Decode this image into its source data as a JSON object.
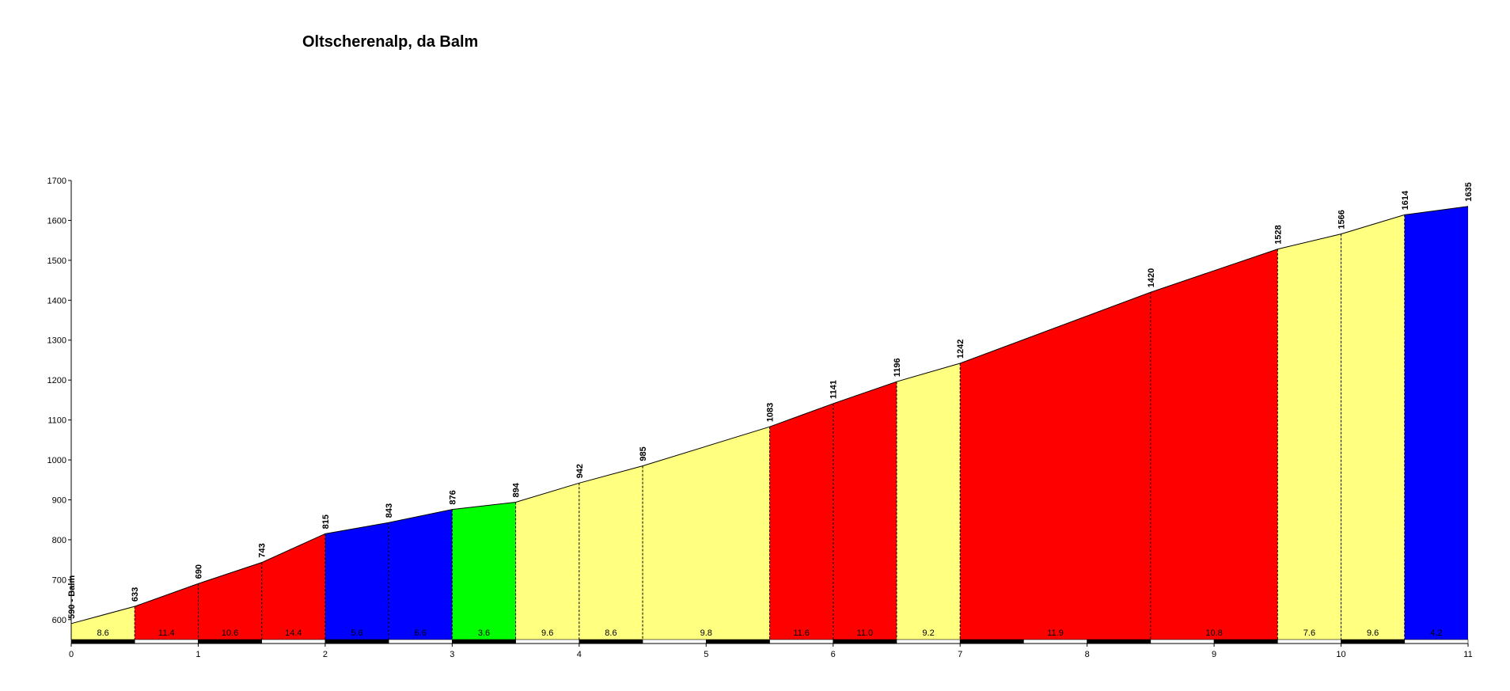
{
  "title": "Oltscherenalp, da Balm",
  "chart_data": {
    "type": "area",
    "title": "Oltscherenalp, da Balm",
    "xlabel": "",
    "ylabel": "",
    "xlim": [
      0,
      11
    ],
    "ylim": [
      550,
      1700
    ],
    "x_ticks": [
      0,
      1,
      2,
      3,
      4,
      5,
      6,
      7,
      8,
      9,
      10,
      11
    ],
    "y_ticks": [
      600,
      700,
      800,
      900,
      1000,
      1100,
      1200,
      1300,
      1400,
      1500,
      1600,
      1700
    ],
    "grid": false,
    "points": [
      {
        "x": 0,
        "y": 590,
        "label": "590 - Balm"
      },
      {
        "x": 0.5,
        "y": 633,
        "label": "633"
      },
      {
        "x": 1,
        "y": 690,
        "label": "690"
      },
      {
        "x": 1.5,
        "y": 743,
        "label": "743"
      },
      {
        "x": 2,
        "y": 815,
        "label": "815"
      },
      {
        "x": 2.5,
        "y": 843,
        "label": "843"
      },
      {
        "x": 3,
        "y": 876,
        "label": "876"
      },
      {
        "x": 3.5,
        "y": 894,
        "label": "894"
      },
      {
        "x": 4,
        "y": 942,
        "label": "942"
      },
      {
        "x": 4.5,
        "y": 985,
        "label": "985"
      },
      {
        "x": 5.5,
        "y": 1083,
        "label": "1083"
      },
      {
        "x": 6,
        "y": 1141,
        "label": "1141"
      },
      {
        "x": 6.5,
        "y": 1196,
        "label": "1196"
      },
      {
        "x": 7,
        "y": 1242,
        "label": "1242"
      },
      {
        "x": 8.5,
        "y": 1420,
        "label": "1420"
      },
      {
        "x": 9.5,
        "y": 1528,
        "label": "1528"
      },
      {
        "x": 10,
        "y": 1566,
        "label": "1566"
      },
      {
        "x": 10.5,
        "y": 1614,
        "label": "1614"
      },
      {
        "x": 11,
        "y": 1635,
        "label": "1635"
      }
    ],
    "segments": [
      {
        "from": 0,
        "to": 0.5,
        "gradient": "8.6",
        "color": "#FFFF80"
      },
      {
        "from": 0.5,
        "to": 1,
        "gradient": "11.4",
        "color": "#FF0000"
      },
      {
        "from": 1,
        "to": 1.5,
        "gradient": "10.6",
        "color": "#FF0000"
      },
      {
        "from": 1.5,
        "to": 2,
        "gradient": "14.4",
        "color": "#FF0000"
      },
      {
        "from": 2,
        "to": 2.5,
        "gradient": "5.6",
        "color": "#0000FF"
      },
      {
        "from": 2.5,
        "to": 3,
        "gradient": "6.6",
        "color": "#0000FF"
      },
      {
        "from": 3,
        "to": 3.5,
        "gradient": "3.6",
        "color": "#00FF00"
      },
      {
        "from": 3.5,
        "to": 4,
        "gradient": "9.6",
        "color": "#FFFF80"
      },
      {
        "from": 4,
        "to": 4.5,
        "gradient": "8.6",
        "color": "#FFFF80"
      },
      {
        "from": 4.5,
        "to": 5.5,
        "gradient": "9.8",
        "color": "#FFFF80"
      },
      {
        "from": 5.5,
        "to": 6,
        "gradient": "11.6",
        "color": "#FF0000"
      },
      {
        "from": 6,
        "to": 6.5,
        "gradient": "11.0",
        "color": "#FF0000"
      },
      {
        "from": 6.5,
        "to": 7,
        "gradient": "9.2",
        "color": "#FFFF80"
      },
      {
        "from": 7,
        "to": 8.5,
        "gradient": "11.9",
        "color": "#FF0000"
      },
      {
        "from": 8.5,
        "to": 9.5,
        "gradient": "10.8",
        "color": "#FF0000"
      },
      {
        "from": 9.5,
        "to": 10,
        "gradient": "7.6",
        "color": "#FFFF80"
      },
      {
        "from": 10,
        "to": 10.5,
        "gradient": "9.6",
        "color": "#FFFF80"
      },
      {
        "from": 10.5,
        "to": 11,
        "gradient": "4.2",
        "color": "#0000FF"
      }
    ]
  }
}
